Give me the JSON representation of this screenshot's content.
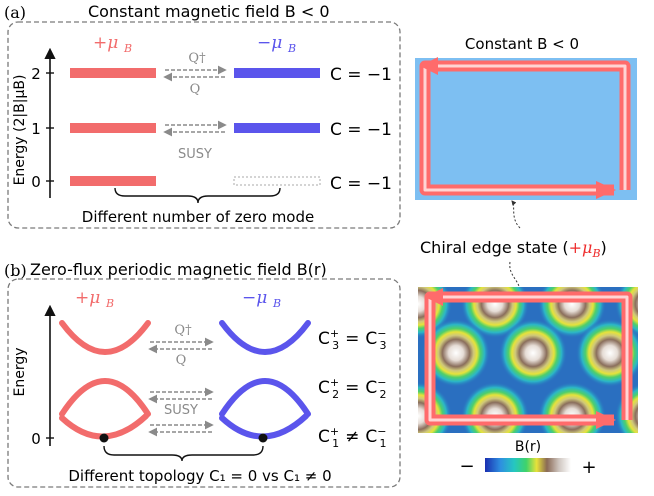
{
  "colors": {
    "plus": "#f26c6c",
    "minus": "#5b55ec",
    "arrow": "#8a8a8a",
    "frame": "#7a7a7a",
    "edge_fill": "#ff6b6b",
    "edge_core": "#ffd4d4",
    "field_blue": "#7dbff2",
    "periodic_bg": "#2a6fc0"
  },
  "panel_a": {
    "tag": "(a)",
    "title": "Constant magnetic field B < 0",
    "plus_label": "+μ",
    "minus_label": "−μ",
    "sub_B": "B",
    "y_axis_label": "Energy (2|B|μB)",
    "y_ticks": [
      "2",
      "1",
      "0"
    ],
    "q_dagger": "Q†",
    "q": "Q",
    "susy": "SUSY",
    "chern": [
      "C = −1",
      "C = −1",
      "C = −1"
    ],
    "footer": "Different number of zero mode"
  },
  "panel_b": {
    "tag": "(b)",
    "title": "Zero-flux periodic magnetic field B(r)",
    "plus_label": "+μ",
    "minus_label": "−μ",
    "sub_B": "B",
    "y_axis_label": "Energy",
    "y_tick": "0",
    "q_dagger": "Q†",
    "q": "Q",
    "susy": "SUSY",
    "chern": [
      {
        "l": "C",
        "ls": "3",
        "op": "=",
        "r": "C",
        "rs": "3"
      },
      {
        "l": "C",
        "ls": "2",
        "op": "=",
        "r": "C",
        "rs": "2"
      },
      {
        "l": "C",
        "ls": "1",
        "op": "≠",
        "r": "C",
        "rs": "1"
      }
    ],
    "footer": "Different topology C₁ = 0 vs C₁ ≠ 0"
  },
  "right": {
    "constant_title": "Constant B < 0",
    "chiral_label": "Chiral edge state (",
    "chiral_mu": "+μ",
    "chiral_sub": "B",
    "chiral_close": ")",
    "colorbar_label": "B(r)",
    "colorbar_minus": "−",
    "colorbar_plus": "+"
  }
}
